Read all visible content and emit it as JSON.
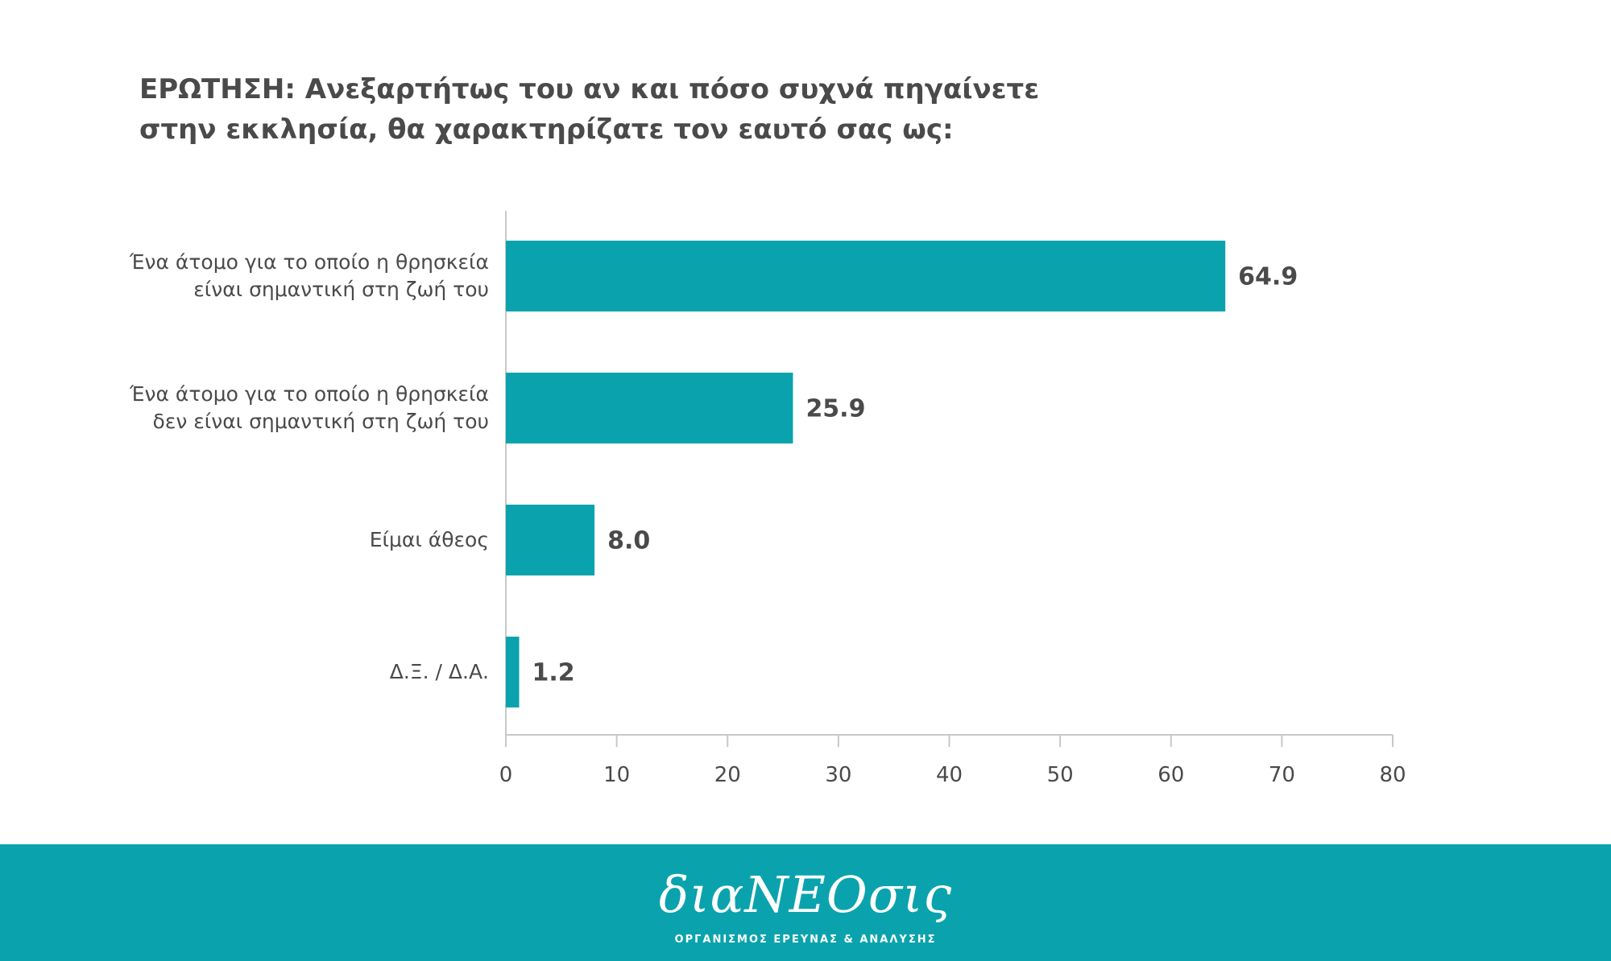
{
  "question": {
    "line1": "ΕΡΩΤΗΣΗ: Ανεξαρτήτως του αν και πόσο συχνά πηγαίνετε",
    "line2": "στην εκκλησία, θα χαρακτηρίζατε τον εαυτό σας ως:"
  },
  "chart_data": {
    "type": "bar",
    "orientation": "horizontal",
    "categories": [
      [
        "Ένα άτομο για το οποίο η θρησκεία",
        "είναι σημαντική στη ζωή του"
      ],
      [
        "Ένα άτομο για το οποίο η θρησκεία",
        "δεν είναι σημαντική στη ζωή του"
      ],
      [
        "Είμαι άθεος"
      ],
      [
        "Δ.Ξ. / Δ.Α."
      ]
    ],
    "values": [
      64.9,
      25.9,
      8.0,
      1.2
    ],
    "value_labels": [
      "64.9",
      "25.9",
      "8.0",
      "1.2"
    ],
    "xlim": [
      0,
      80
    ],
    "xticks": [
      0,
      10,
      20,
      30,
      40,
      50,
      60,
      70,
      80
    ],
    "grid": false,
    "bar_color": "#0aa3ad",
    "text_color": "#4a4a4a",
    "axis_color": "#c8c8c8"
  },
  "footer": {
    "brand": "διαΝΕΟσις",
    "subtitle": "ΟΡΓΑΝΙΣΜΟΣ ΕΡΕΥΝΑΣ & ΑΝΑΛΥΣΗΣ",
    "background": "#0aa3ad"
  }
}
